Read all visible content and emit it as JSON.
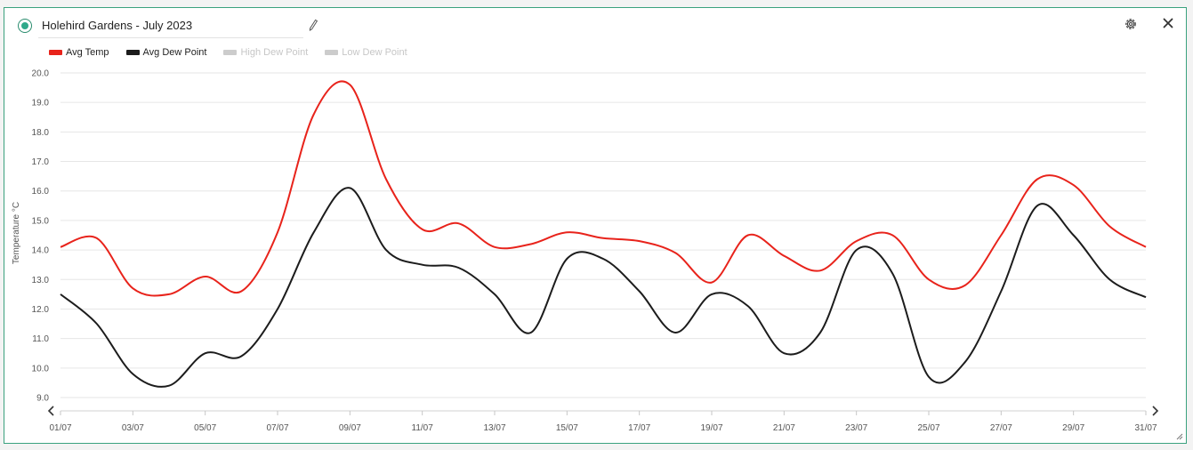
{
  "header": {
    "title": "Holehird Gardens - July 2023",
    "edit_icon": "pencil-icon",
    "settings_icon": "gear-icon",
    "close_icon": "close-icon",
    "status_icon": "radio-selected-icon"
  },
  "legend": [
    {
      "label": "Avg Temp",
      "color": "#e8231b",
      "active": true
    },
    {
      "label": "Avg Dew Point",
      "color": "#1c1c1c",
      "active": true
    },
    {
      "label": "High Dew Point",
      "color": "#cccccc",
      "active": false
    },
    {
      "label": "Low Dew Point",
      "color": "#cccccc",
      "active": false
    }
  ],
  "nav": {
    "prev_icon": "chevron-left-icon",
    "next_icon": "chevron-right-icon"
  },
  "chart_data": {
    "type": "line",
    "title": "",
    "xlabel": "",
    "ylabel": "Temperature °C",
    "ylim": [
      9.0,
      20.0
    ],
    "yticks": [
      "20.0",
      "19.0",
      "18.0",
      "17.0",
      "16.0",
      "15.0",
      "14.0",
      "13.0",
      "12.0",
      "11.0",
      "10.0",
      "9.0"
    ],
    "x_tick_labels": [
      "01/07",
      "03/07",
      "05/07",
      "07/07",
      "09/07",
      "11/07",
      "13/07",
      "15/07",
      "17/07",
      "19/07",
      "21/07",
      "23/07",
      "25/07",
      "27/07",
      "29/07",
      "31/07"
    ],
    "x": [
      "01/07",
      "02/07",
      "03/07",
      "04/07",
      "05/07",
      "06/07",
      "07/07",
      "08/07",
      "09/07",
      "10/07",
      "11/07",
      "12/07",
      "13/07",
      "14/07",
      "15/07",
      "16/07",
      "17/07",
      "18/07",
      "19/07",
      "20/07",
      "21/07",
      "22/07",
      "23/07",
      "24/07",
      "25/07",
      "26/07",
      "27/07",
      "28/07",
      "29/07",
      "30/07",
      "31/07"
    ],
    "series": [
      {
        "name": "Avg Temp",
        "color": "#e8231b",
        "values": [
          14.1,
          14.4,
          12.7,
          12.5,
          13.1,
          12.6,
          14.6,
          18.6,
          19.6,
          16.4,
          14.7,
          14.9,
          14.1,
          14.2,
          14.6,
          14.4,
          14.3,
          13.9,
          12.9,
          14.5,
          13.8,
          13.3,
          14.3,
          14.5,
          13.0,
          12.8,
          14.5,
          16.4,
          16.2,
          14.8,
          14.1
        ]
      },
      {
        "name": "Avg Dew Point",
        "color": "#1c1c1c",
        "values": [
          12.5,
          11.5,
          9.8,
          9.4,
          10.5,
          10.4,
          12.0,
          14.6,
          16.1,
          14.0,
          13.5,
          13.4,
          12.5,
          11.2,
          13.7,
          13.7,
          12.6,
          11.2,
          12.5,
          12.1,
          10.5,
          11.2,
          14.0,
          13.2,
          9.7,
          10.2,
          12.6,
          15.5,
          14.5,
          13.0,
          12.4
        ]
      }
    ],
    "grid": true,
    "legend_position": "top-left"
  }
}
